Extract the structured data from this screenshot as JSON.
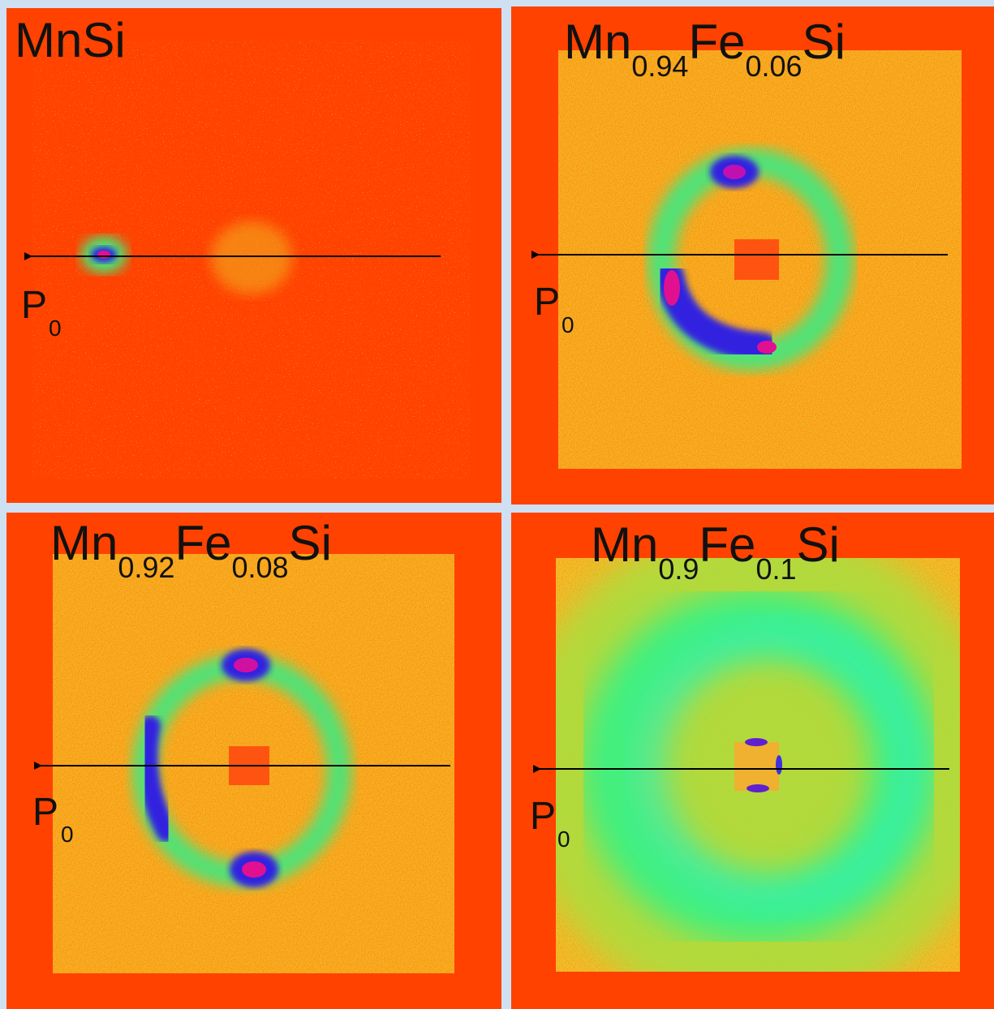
{
  "panels": [
    {
      "label": [
        "MnSi"
      ],
      "polarization": [
        "P",
        "0"
      ]
    },
    {
      "label": [
        "Mn",
        "0.94",
        "Fe",
        "0.06",
        "Si"
      ],
      "polarization": [
        "P",
        "0"
      ]
    },
    {
      "label": [
        "Mn",
        "0.92",
        "Fe",
        "0.08",
        "Si"
      ],
      "polarization": [
        "P",
        "0"
      ]
    },
    {
      "label": [
        "Mn",
        "0.9",
        "Fe",
        "0.1",
        "Si"
      ],
      "polarization": [
        "P",
        "0"
      ]
    }
  ]
}
